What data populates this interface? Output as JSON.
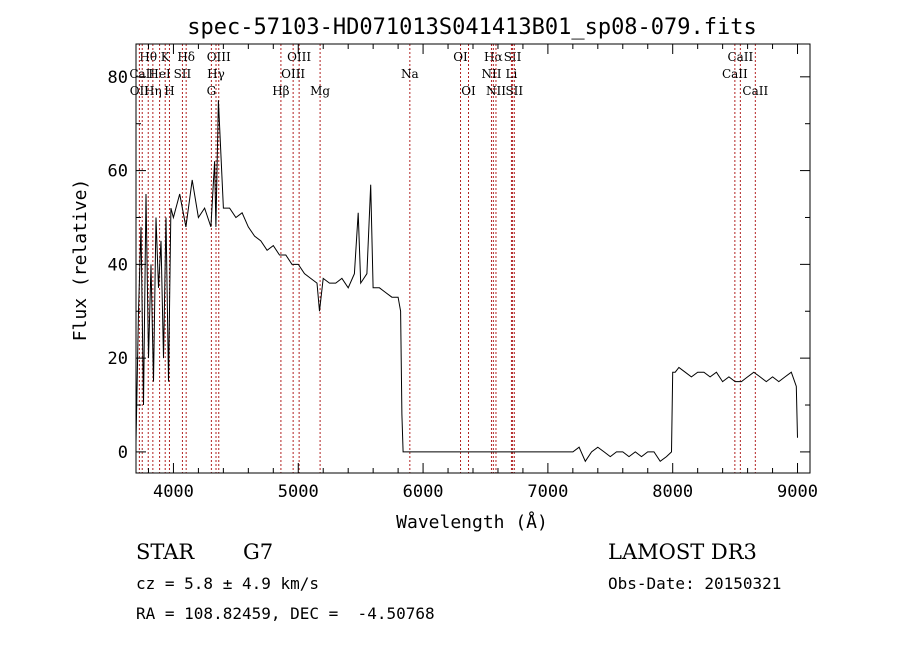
{
  "chart_data": {
    "type": "line",
    "title": "spec-57103-HD071013S041413B01_sp08-079.fits",
    "xlabel": "Wavelength (Å)",
    "ylabel": "Flux (relative)",
    "xlim": [
      3700,
      9100
    ],
    "ylim": [
      -4.5,
      87
    ],
    "x_ticks": [
      4000,
      5000,
      6000,
      7000,
      8000,
      9000
    ],
    "y_ticks": [
      0,
      20,
      40,
      60,
      80
    ],
    "grid": false,
    "series": [
      {
        "x": [
          3700,
          3720,
          3740,
          3760,
          3780,
          3800,
          3820,
          3840,
          3860,
          3880,
          3900,
          3920,
          3940,
          3960,
          3980,
          4000,
          4050,
          4100,
          4150,
          4200,
          4250,
          4300,
          4330,
          4340,
          4360,
          4400,
          4450,
          4500,
          4550,
          4600,
          4650,
          4700,
          4750,
          4800,
          4850,
          4900,
          4950,
          5000,
          5050,
          5100,
          5150,
          5170,
          5200,
          5250,
          5300,
          5350,
          5400,
          5450,
          5480,
          5500,
          5550,
          5580,
          5600,
          5650,
          5700,
          5750,
          5800,
          5820,
          5830,
          5840,
          5850,
          7200,
          7250,
          7300,
          7350,
          7400,
          7450,
          7500,
          7550,
          7600,
          7650,
          7700,
          7750,
          7800,
          7850,
          7900,
          7950,
          7990,
          8000,
          8020,
          8050,
          8100,
          8150,
          8200,
          8250,
          8300,
          8350,
          8400,
          8450,
          8500,
          8550,
          8600,
          8650,
          8700,
          8750,
          8800,
          8850,
          8900,
          8950,
          8990,
          9000
        ],
        "y": [
          2,
          30,
          48,
          10,
          55,
          20,
          40,
          15,
          50,
          35,
          45,
          20,
          50,
          15,
          52,
          50,
          55,
          48,
          58,
          50,
          52,
          48,
          62,
          48,
          75,
          52,
          52,
          50,
          51,
          48,
          46,
          45,
          43,
          44,
          42,
          42,
          40,
          40,
          38,
          37,
          36,
          30,
          37,
          36,
          36,
          37,
          35,
          38,
          51,
          36,
          38,
          57,
          35,
          35,
          34,
          33,
          33,
          30,
          8,
          0,
          0,
          0,
          1,
          -2,
          0,
          1,
          0,
          -1,
          0,
          0,
          -1,
          0,
          -1,
          0,
          0,
          -2,
          -1,
          0,
          17,
          17,
          18,
          17,
          16,
          17,
          17,
          16,
          17,
          15,
          16,
          15,
          15,
          16,
          17,
          16,
          15,
          16,
          15,
          16,
          17,
          14,
          3
        ]
      }
    ],
    "line_markers": [
      {
        "label": "Hθ",
        "x": 3798,
        "row": 1
      },
      {
        "label": "CaII",
        "x": 3750,
        "row": 2
      },
      {
        "label": "OII",
        "x": 3727,
        "row": 3
      },
      {
        "label": "Hη",
        "x": 3835,
        "row": 3
      },
      {
        "label": "K",
        "x": 3934,
        "row": 1
      },
      {
        "label": "HeI",
        "x": 3889,
        "row": 2
      },
      {
        "label": "H",
        "x": 3968,
        "row": 3
      },
      {
        "label": "Hδ",
        "x": 4102,
        "row": 1
      },
      {
        "label": "SII",
        "x": 4072,
        "row": 2
      },
      {
        "label": "OIII",
        "x": 4363,
        "row": 1
      },
      {
        "label": "Hγ",
        "x": 4341,
        "row": 2
      },
      {
        "label": "G",
        "x": 4304,
        "row": 3
      },
      {
        "label": "OIII",
        "x": 5007,
        "row": 1
      },
      {
        "label": "OIII",
        "x": 4959,
        "row": 2
      },
      {
        "label": "Hβ",
        "x": 4861,
        "row": 3
      },
      {
        "label": "Mg",
        "x": 5175,
        "row": 3
      },
      {
        "label": "Na",
        "x": 5894,
        "row": 2
      },
      {
        "label": "OI",
        "x": 6300,
        "row": 1
      },
      {
        "label": "OI",
        "x": 6364,
        "row": 3
      },
      {
        "label": "Hα",
        "x": 6563,
        "row": 1
      },
      {
        "label": "SII",
        "x": 6717,
        "row": 1
      },
      {
        "label": "NII",
        "x": 6548,
        "row": 2
      },
      {
        "label": "Li",
        "x": 6708,
        "row": 2
      },
      {
        "label": "NII",
        "x": 6584,
        "row": 3
      },
      {
        "label": "SII",
        "x": 6731,
        "row": 3
      },
      {
        "label": "CaII",
        "x": 8542,
        "row": 1
      },
      {
        "label": "CaII",
        "x": 8498,
        "row": 2
      },
      {
        "label": "CaII",
        "x": 8662,
        "row": 3
      }
    ]
  },
  "info": {
    "object_class": "STAR",
    "subclass": "G7",
    "survey": "LAMOST DR3",
    "redshift": "cz = 5.8 ± 4.9 km/s",
    "obs_date": "Obs-Date: 20150321",
    "coords": "RA = 108.82459, DEC =  -4.50768"
  }
}
